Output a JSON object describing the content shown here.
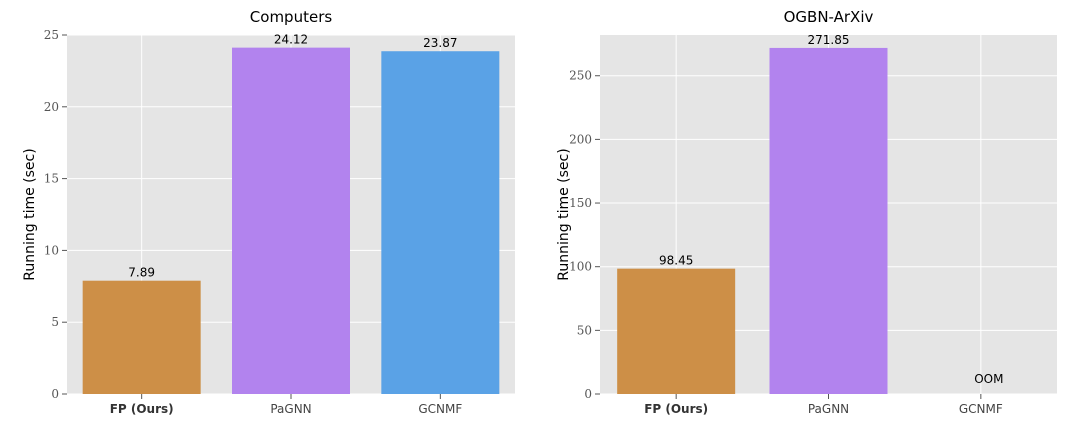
{
  "chart_data": [
    {
      "type": "bar",
      "title": "Computers",
      "xlabel": "",
      "ylabel": "Running time (sec)",
      "categories": [
        "FP (Ours)",
        "PaGNN",
        "GCNMF"
      ],
      "values": [
        7.89,
        24.12,
        23.87
      ],
      "value_labels": [
        "7.89",
        "24.12",
        "23.87"
      ],
      "colors": [
        "#CD8F47",
        "#B283EE",
        "#5AA2E6"
      ],
      "ylim": [
        0,
        25
      ],
      "yticks": [
        0,
        5,
        10,
        15,
        20,
        25
      ],
      "grid": true,
      "background": "#E5E5E5"
    },
    {
      "type": "bar",
      "title": "OGBN-ArXiv",
      "xlabel": "",
      "ylabel": "Running time (sec)",
      "categories": [
        "FP (Ours)",
        "PaGNN",
        "GCNMF"
      ],
      "values": [
        98.45,
        271.85,
        null
      ],
      "value_labels": [
        "98.45",
        "271.85",
        "OOM"
      ],
      "colors": [
        "#CD8F47",
        "#B283EE",
        "#5AA2E6"
      ],
      "ylim": [
        0,
        282
      ],
      "yticks": [
        0,
        50,
        100,
        150,
        200,
        250
      ],
      "grid": true,
      "background": "#E5E5E5"
    }
  ]
}
